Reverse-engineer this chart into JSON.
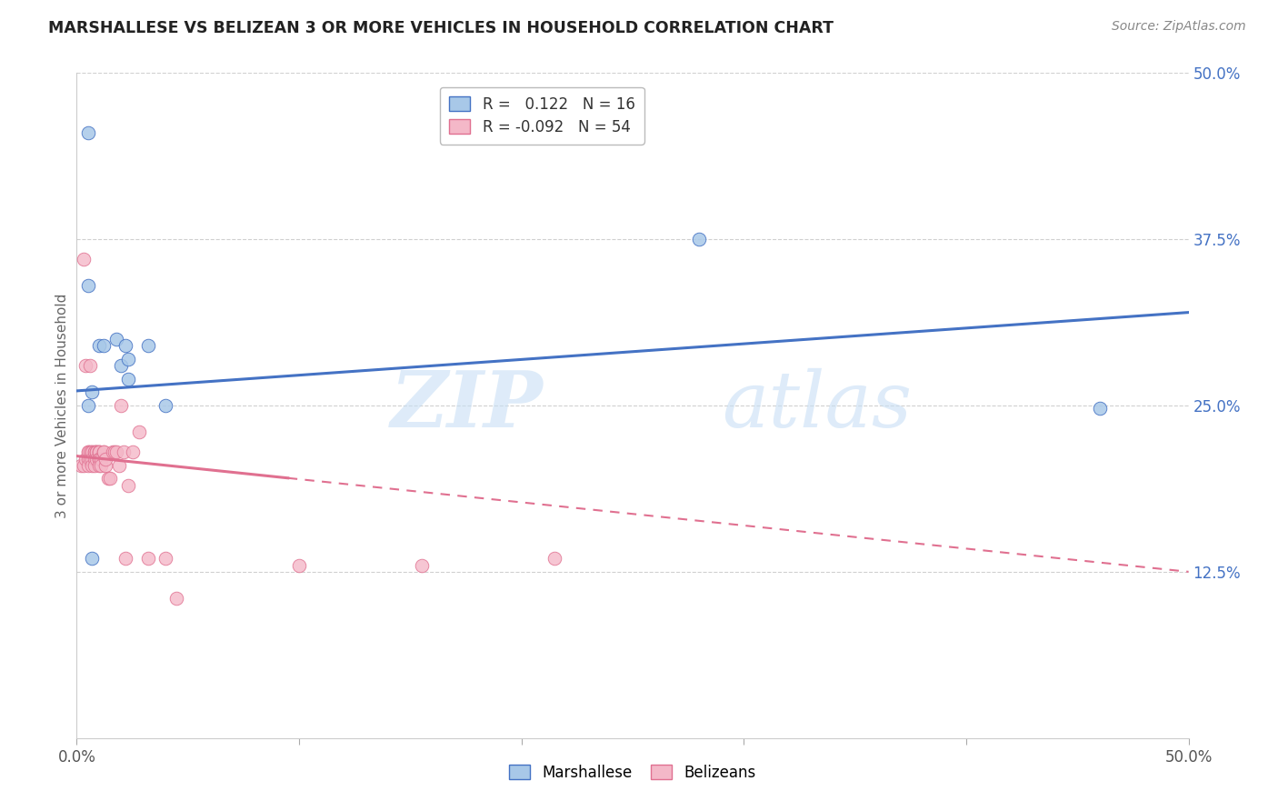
{
  "title": "MARSHALLESE VS BELIZEAN 3 OR MORE VEHICLES IN HOUSEHOLD CORRELATION CHART",
  "source": "Source: ZipAtlas.com",
  "ylabel": "3 or more Vehicles in Household",
  "xlim": [
    0.0,
    0.5
  ],
  "ylim": [
    0.0,
    0.5
  ],
  "xticks": [
    0.0,
    0.1,
    0.2,
    0.3,
    0.4,
    0.5
  ],
  "xticklabels": [
    "0.0%",
    "",
    "",
    "",
    "",
    "50.0%"
  ],
  "yticks_right": [
    0.125,
    0.25,
    0.375,
    0.5
  ],
  "ytick_right_labels": [
    "12.5%",
    "25.0%",
    "37.5%",
    "50.0%"
  ],
  "legend_r1_val": "0.122",
  "legend_n1_val": "16",
  "legend_r2_val": "-0.092",
  "legend_n2_val": "54",
  "marshallese_color": "#a8c8e8",
  "belizean_color": "#f4b8c8",
  "trendline_marshallese_color": "#4472c4",
  "trendline_belizean_color": "#e07090",
  "watermark_zip": "ZIP",
  "watermark_atlas": "atlas",
  "marshallese_x": [
    0.005,
    0.005,
    0.007,
    0.01,
    0.012,
    0.018,
    0.02,
    0.022,
    0.023,
    0.023,
    0.032,
    0.04,
    0.005,
    0.007,
    0.28,
    0.46
  ],
  "marshallese_y": [
    0.455,
    0.34,
    0.26,
    0.295,
    0.295,
    0.3,
    0.28,
    0.295,
    0.285,
    0.27,
    0.295,
    0.25,
    0.25,
    0.135,
    0.375,
    0.248
  ],
  "belizean_x": [
    0.002,
    0.003,
    0.003,
    0.004,
    0.004,
    0.005,
    0.005,
    0.005,
    0.005,
    0.006,
    0.006,
    0.006,
    0.007,
    0.007,
    0.007,
    0.007,
    0.008,
    0.008,
    0.008,
    0.008,
    0.009,
    0.009,
    0.009,
    0.009,
    0.01,
    0.01,
    0.01,
    0.01,
    0.01,
    0.01,
    0.011,
    0.011,
    0.012,
    0.012,
    0.013,
    0.013,
    0.014,
    0.015,
    0.016,
    0.017,
    0.018,
    0.019,
    0.02,
    0.021,
    0.022,
    0.023,
    0.025,
    0.028,
    0.032,
    0.04,
    0.045,
    0.1,
    0.155,
    0.215
  ],
  "belizean_y": [
    0.205,
    0.36,
    0.205,
    0.28,
    0.21,
    0.215,
    0.215,
    0.21,
    0.205,
    0.28,
    0.215,
    0.21,
    0.215,
    0.215,
    0.21,
    0.205,
    0.215,
    0.215,
    0.21,
    0.205,
    0.215,
    0.215,
    0.215,
    0.21,
    0.215,
    0.215,
    0.215,
    0.21,
    0.21,
    0.205,
    0.21,
    0.205,
    0.215,
    0.215,
    0.205,
    0.21,
    0.195,
    0.195,
    0.215,
    0.215,
    0.215,
    0.205,
    0.25,
    0.215,
    0.135,
    0.19,
    0.215,
    0.23,
    0.135,
    0.135,
    0.105,
    0.13,
    0.13,
    0.135
  ],
  "trendline_blue_x0": 0.0,
  "trendline_blue_y0": 0.261,
  "trendline_blue_x1": 0.5,
  "trendline_blue_y1": 0.32,
  "trendline_pink_x0": 0.0,
  "trendline_pink_y0": 0.212,
  "trendline_pink_x1": 0.5,
  "trendline_pink_y1": 0.125,
  "trendline_pink_solid_end": 0.095,
  "background_color": "#ffffff",
  "grid_color": "#d0d0d0"
}
